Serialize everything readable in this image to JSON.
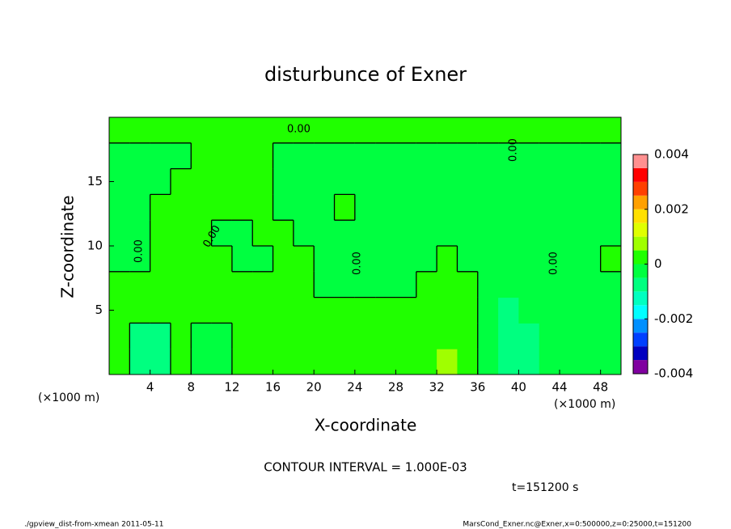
{
  "chart_data": {
    "type": "contour",
    "title": "disturbunce of Exner",
    "x_label": "X-coordinate",
    "y_label": "Z-coordinate",
    "x_unit": "(×1000 m)",
    "contour_label": "0.00",
    "contour_interval": "CONTOUR INTERVAL = 1.000E-03",
    "time": "t=151200 s",
    "footer_left": "./gpview_dist-from-xmean  2011-05-11",
    "footer_right": "MarsCond_Exner.nc@Exner,x=0:500000,z=0:25000,t=151200",
    "xlim": [
      0,
      50
    ],
    "ylim": [
      0,
      20
    ],
    "xticks": [
      4,
      8,
      12,
      16,
      20,
      24,
      28,
      32,
      36,
      40,
      44,
      48
    ],
    "yticks": [
      5,
      10,
      15
    ],
    "x": [
      1,
      3,
      5,
      7,
      9,
      11,
      13,
      15,
      17,
      19,
      21,
      23,
      25,
      27,
      29,
      31,
      33,
      35,
      37,
      39,
      41,
      43,
      45,
      47,
      49
    ],
    "y": [
      1,
      3,
      5,
      7,
      9,
      11,
      13,
      15,
      17,
      19
    ],
    "z": [
      [
        0.0002,
        -0.0007,
        -0.0007,
        0.0002,
        -0.0002,
        -0.0002,
        0.0002,
        0.0002,
        0.0002,
        0.0002,
        0.0002,
        0.0002,
        0.0002,
        0.0002,
        0.0002,
        0.0002,
        0.0007,
        0.0002,
        -0.0002,
        -0.0007,
        -0.0007,
        -0.0002,
        -0.0002,
        -0.0002,
        -0.0002
      ],
      [
        0.0002,
        -0.0007,
        -0.0007,
        0.0002,
        -0.0002,
        -0.0002,
        0.0002,
        0.0002,
        0.0002,
        0.0002,
        0.0002,
        0.0002,
        0.0002,
        0.0002,
        0.0002,
        0.0002,
        0.0002,
        0.0002,
        -0.0002,
        -0.0007,
        -0.0007,
        -0.0002,
        -0.0002,
        -0.0002,
        -0.0002
      ],
      [
        0.0002,
        0.0002,
        0.0002,
        0.0002,
        0.0002,
        0.0002,
        0.0002,
        0.0002,
        0.0002,
        0.0002,
        0.0002,
        0.0002,
        0.0002,
        0.0002,
        0.0002,
        0.0002,
        0.0002,
        0.0002,
        -0.0002,
        -0.0007,
        -0.0002,
        -0.0002,
        -0.0002,
        -0.0002,
        -0.0002
      ],
      [
        0.0002,
        0.0002,
        0.0002,
        0.0002,
        0.0002,
        0.0002,
        0.0002,
        0.0002,
        0.0002,
        0.0002,
        -0.0002,
        -0.0002,
        -0.0002,
        -0.0002,
        -0.0002,
        0.0002,
        0.0002,
        0.0002,
        -0.0002,
        -0.0002,
        -0.0002,
        -0.0002,
        -0.0002,
        -0.0002,
        -0.0002
      ],
      [
        -0.0002,
        -0.0002,
        0.0002,
        0.0002,
        0.0002,
        0.0002,
        -0.0002,
        -0.0002,
        0.0002,
        0.0002,
        -0.0002,
        -0.0002,
        -0.0002,
        -0.0002,
        -0.0002,
        -0.0002,
        0.0002,
        -0.0002,
        -0.0002,
        -0.0002,
        -0.0002,
        -0.0002,
        -0.0002,
        -0.0002,
        0.0002
      ],
      [
        -0.0002,
        -0.0002,
        0.0002,
        0.0002,
        0.0002,
        -0.0002,
        -0.0002,
        0.0002,
        0.0002,
        -0.0002,
        -0.0002,
        -0.0002,
        -0.0002,
        -0.0002,
        -0.0002,
        -0.0002,
        -0.0002,
        -0.0002,
        -0.0002,
        -0.0002,
        -0.0002,
        -0.0002,
        -0.0002,
        -0.0002,
        -0.0002
      ],
      [
        -0.0002,
        -0.0002,
        0.0002,
        0.0002,
        0.0002,
        0.0002,
        0.0002,
        0.0002,
        -0.0002,
        -0.0002,
        -0.0002,
        0.0002,
        -0.0002,
        -0.0002,
        -0.0002,
        -0.0002,
        -0.0002,
        -0.0002,
        -0.0002,
        -0.0002,
        -0.0002,
        -0.0002,
        -0.0002,
        -0.0002,
        -0.0002
      ],
      [
        -0.0002,
        -0.0002,
        -0.0002,
        0.0002,
        0.0002,
        0.0002,
        0.0002,
        0.0002,
        -0.0002,
        -0.0002,
        -0.0002,
        -0.0002,
        -0.0002,
        -0.0002,
        -0.0002,
        -0.0002,
        -0.0002,
        -0.0002,
        -0.0002,
        -0.0002,
        -0.0002,
        -0.0002,
        -0.0002,
        -0.0002,
        -0.0002
      ],
      [
        -0.0002,
        -0.0002,
        -0.0002,
        -0.0002,
        0.0002,
        0.0002,
        0.0002,
        0.0002,
        -0.0002,
        -0.0002,
        -0.0002,
        -0.0002,
        -0.0002,
        -0.0002,
        -0.0002,
        -0.0002,
        -0.0002,
        -0.0002,
        -0.0002,
        -0.0002,
        -0.0002,
        -0.0002,
        -0.0002,
        -0.0002,
        -0.0002
      ],
      [
        0.0002,
        0.0002,
        0.0002,
        0.0002,
        0.0002,
        0.0002,
        0.0002,
        0.0002,
        0.0002,
        0.0002,
        0.0002,
        0.0002,
        0.0002,
        0.0002,
        0.0002,
        0.0002,
        0.0002,
        0.0002,
        0.0002,
        0.0002,
        0.0002,
        0.0002,
        0.0002,
        0.0002,
        0.0002
      ]
    ],
    "levels": [
      -0.004,
      -0.0035,
      -0.003,
      -0.0025,
      -0.002,
      -0.0015,
      -0.001,
      -0.0005,
      0,
      0.0005,
      0.001,
      0.0015,
      0.002,
      0.0025,
      0.003,
      0.0035,
      0.004
    ],
    "colors": [
      "#8000a0",
      "#0000c0",
      "#0040ff",
      "#0090ff",
      "#00ffff",
      "#00ffc0",
      "#00ff80",
      "#00ff40",
      "#20ff00",
      "#a0ff00",
      "#e0ff00",
      "#ffe000",
      "#ffa000",
      "#ff4000",
      "#ff0000",
      "#ff9090"
    ],
    "colorbar_ticks": [
      -0.004,
      -0.002,
      0,
      0.002,
      0.004
    ]
  }
}
